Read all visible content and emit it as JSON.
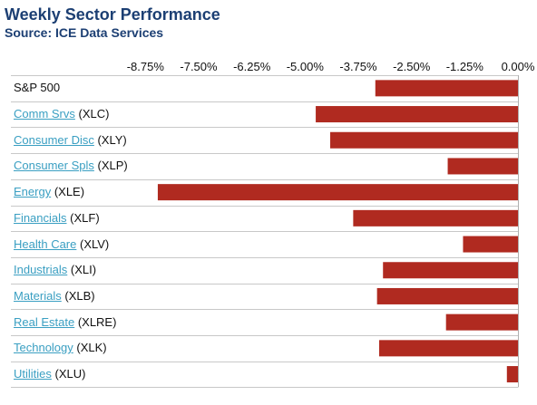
{
  "header": {
    "title": "Weekly Sector Performance",
    "source": "Source: ICE Data Services"
  },
  "chart_data": {
    "type": "bar",
    "orientation": "horizontal",
    "title": "Weekly Sector Performance",
    "xlabel": "",
    "ylabel": "",
    "xlim": [
      -9.375,
      0
    ],
    "x_ticks": [
      -8.75,
      -7.5,
      -6.25,
      -5.0,
      -3.75,
      -2.5,
      -1.25,
      0.0
    ],
    "x_tick_labels": [
      "-8.75%",
      "-7.50%",
      "-6.25%",
      "-5.00%",
      "-3.75%",
      "-2.50%",
      "-1.25%",
      "0.00%"
    ],
    "axis_position": "top",
    "grid": false,
    "legend": "none",
    "bar_color": "#b02a20",
    "categories": [
      {
        "link": "",
        "ticker": "S&P 500"
      },
      {
        "link": "Comm Srvs",
        "ticker": "(XLC)"
      },
      {
        "link": "Consumer Disc",
        "ticker": "(XLY)"
      },
      {
        "link": "Consumer Spls",
        "ticker": "(XLP)"
      },
      {
        "link": "Energy",
        "ticker": "(XLE)"
      },
      {
        "link": "Financials",
        "ticker": "(XLF)"
      },
      {
        "link": "Health Care",
        "ticker": "(XLV)"
      },
      {
        "link": "Industrials",
        "ticker": "(XLI)"
      },
      {
        "link": "Materials",
        "ticker": "(XLB)"
      },
      {
        "link": "Real Estate",
        "ticker": "(XLRE)"
      },
      {
        "link": "Technology",
        "ticker": "(XLK)"
      },
      {
        "link": "Utilities",
        "ticker": "(XLU)"
      }
    ],
    "values": [
      -3.35,
      -4.75,
      -4.41,
      -1.65,
      -8.46,
      -3.87,
      -1.29,
      -3.17,
      -3.31,
      -1.69,
      -3.26,
      -0.26
    ]
  }
}
